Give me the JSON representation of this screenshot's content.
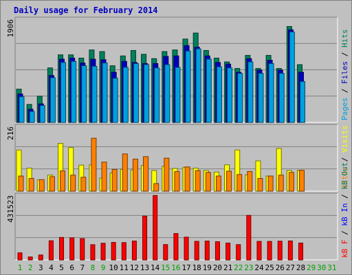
{
  "chart_data": {
    "type": "bar",
    "title": "Daily usage for February 2014",
    "x_labels": [
      "1",
      "2",
      "3",
      "4",
      "5",
      "6",
      "7",
      "8",
      "9",
      "10",
      "11",
      "12",
      "13",
      "14",
      "15",
      "16",
      "17",
      "18",
      "19",
      "20",
      "21",
      "22",
      "23",
      "24",
      "25",
      "26",
      "27",
      "28",
      "29",
      "30",
      "31"
    ],
    "weekend_days": [
      1,
      2,
      8,
      9,
      15,
      16,
      22,
      23
    ],
    "days_with_data": 28,
    "panels": [
      {
        "name": "hits_files_pages",
        "max_label": "1906",
        "ylim": [
          0,
          1906
        ],
        "right_label": [
          {
            "text": "Pages",
            "color": "#00a0e0"
          },
          {
            "text": " / ",
            "color": "#000000"
          },
          {
            "text": "Files",
            "color": "#0000c0"
          },
          {
            "text": " / ",
            "color": "#000000"
          },
          {
            "text": "Hits",
            "color": "#00805c"
          }
        ],
        "series": [
          {
            "name": "Hits",
            "color": "#00805c",
            "values": [
              610,
              330,
              480,
              1000,
              1240,
              1240,
              1180,
              1330,
              1300,
              1040,
              1220,
              1320,
              1250,
              1170,
              1300,
              1330,
              1530,
              1640,
              1320,
              1180,
              1110,
              990,
              1230,
              990,
              1230,
              990,
              1760,
              1060
            ]
          },
          {
            "name": "Files",
            "color": "#0000c0",
            "values": [
              520,
              240,
              340,
              860,
              1160,
              1180,
              1090,
              1160,
              1150,
              920,
              1120,
              1100,
              1080,
              1080,
              1210,
              1220,
              1410,
              1380,
              1220,
              1100,
              1070,
              920,
              1170,
              960,
              1140,
              960,
              1700,
              920
            ]
          },
          {
            "name": "Pages",
            "color": "#00a0e0",
            "values": [
              470,
              200,
              310,
              820,
              1100,
              1120,
              1040,
              1030,
              1090,
              810,
              1010,
              1080,
              1060,
              1000,
              1060,
              1010,
              1310,
              1350,
              1160,
              1020,
              1000,
              900,
              1110,
              900,
              1080,
              900,
              1660,
              750
            ]
          }
        ]
      },
      {
        "name": "visits_sites",
        "max_label": "216",
        "ylim": [
          0,
          216
        ],
        "right_label": [
          {
            "text": "Sites",
            "color": "#ff8000"
          },
          {
            "text": " / ",
            "color": "#000000"
          },
          {
            "text": "Visits",
            "color": "#ffff00"
          }
        ],
        "series": [
          {
            "name": "Visits",
            "color": "#ffff00",
            "values": [
              136,
              76,
              37,
              53,
              158,
              144,
              86,
              87,
              43,
              60,
              72,
              70,
              85,
              68,
              82,
              75,
              79,
              76,
              68,
              63,
              87,
              136,
              54,
              100,
              50,
              141,
              68,
              69
            ]
          },
          {
            "name": "Sites",
            "color": "#ff8000",
            "values": [
              50,
              42,
              38,
              48,
              67,
              53,
              46,
              175,
              96,
              72,
              123,
              106,
              114,
              25,
              109,
              65,
              80,
              68,
              62,
              50,
              66,
              55,
              65,
              42,
              50,
              53,
              62,
              69
            ]
          }
        ]
      },
      {
        "name": "kbytes",
        "max_label": "431523",
        "ylim": [
          0,
          431523
        ],
        "right_label": [
          {
            "text": "kB F",
            "color": "#ff0000"
          },
          {
            "text": " / ",
            "color": "#000000"
          },
          {
            "text": "kB In",
            "color": "#0000ff"
          },
          {
            "text": " / ",
            "color": "#000000"
          },
          {
            "text": "kB Out",
            "color": "#00805c"
          }
        ],
        "series": [
          {
            "name": "kB F",
            "color": "#ff0000",
            "values": [
              46600,
              19200,
              32300,
              126300,
              148300,
              145700,
              140700,
              100400,
              110000,
              115500,
              114200,
              124400,
              289400,
              425600,
              101200,
              174100,
              150100,
              122500,
              124200,
              120000,
              111200,
              100800,
              293900,
              122200,
              122100,
              123700,
              125100,
              111400
            ]
          }
        ]
      }
    ]
  }
}
